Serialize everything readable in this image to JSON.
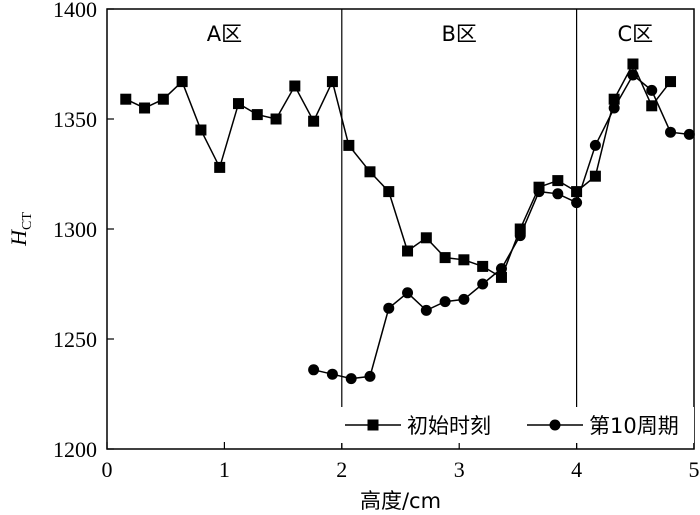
{
  "chart_data": {
    "type": "line",
    "xlabel": "高度/cm",
    "ylabel": "H",
    "ylabel_subscript": "CT",
    "xlim": [
      0,
      5
    ],
    "ylim": [
      1200,
      1400
    ],
    "x_ticks": [
      "0",
      "1",
      "2",
      "3",
      "4",
      "5"
    ],
    "y_ticks": [
      "1200",
      "1250",
      "1300",
      "1350",
      "1400"
    ],
    "grid": false,
    "legend_position": "bottom-right",
    "region_dividers": [
      2,
      4
    ],
    "regions": [
      {
        "label": "A区",
        "center_x": 1.0
      },
      {
        "label": "B区",
        "center_x": 3.0
      },
      {
        "label": "C区",
        "center_x": 4.5
      }
    ],
    "series": [
      {
        "name": "初始时刻",
        "marker": "square",
        "x": [
          0.16,
          0.32,
          0.48,
          0.64,
          0.8,
          0.96,
          1.12,
          1.28,
          1.44,
          1.6,
          1.76,
          1.92,
          2.06,
          2.24,
          2.4,
          2.56,
          2.72,
          2.88,
          3.04,
          3.2,
          3.36,
          3.52,
          3.68,
          3.84,
          4.0,
          4.16,
          4.32,
          4.48,
          4.64,
          4.8
        ],
        "y": [
          1359,
          1355,
          1359,
          1367,
          1345,
          1328,
          1357,
          1352,
          1350,
          1365,
          1349,
          1367,
          1338,
          1326,
          1317,
          1290,
          1296,
          1287,
          1286,
          1283,
          1278,
          1300,
          1319,
          1322,
          1317,
          1324,
          1359,
          1375,
          1356,
          1367
        ]
      },
      {
        "name": "第10周期",
        "marker": "circle",
        "x": [
          1.76,
          1.92,
          2.08,
          2.24,
          2.4,
          2.56,
          2.72,
          2.88,
          3.04,
          3.2,
          3.36,
          3.52,
          3.68,
          3.84,
          4.0,
          4.16,
          4.32,
          4.48,
          4.64,
          4.8,
          4.96
        ],
        "y": [
          1236,
          1234,
          1232,
          1233,
          1264,
          1271,
          1263,
          1267,
          1268,
          1275,
          1282,
          1297,
          1317,
          1316,
          1312,
          1338,
          1355,
          1370,
          1363,
          1344,
          1343
        ]
      }
    ]
  }
}
